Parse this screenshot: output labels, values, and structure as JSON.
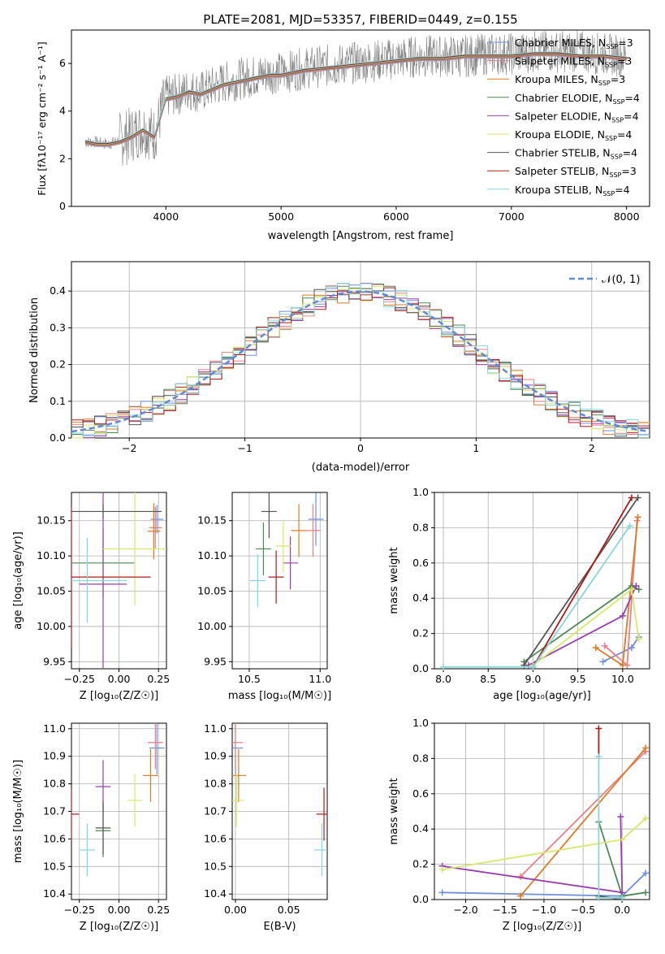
{
  "page": {
    "title": "PLATE=2081, MJD=53357, FIBERID=0449, z=0.155"
  },
  "colors": {
    "chabrier_miles": "#6f8fdc",
    "salpeter_miles": "#ea7f87",
    "kroupa_miles": "#e07a25",
    "chabrier_elodie": "#4f8a56",
    "salpeter_elodie": "#9a3fb0",
    "kroupa_elodie": "#d8e86b",
    "chabrier_stelib": "#555555",
    "salpeter_stelib": "#b01a1a",
    "kroupa_stelib": "#86d8d8",
    "data": "#808080",
    "gauss": "#5f8ad6"
  },
  "spectrum": {
    "xlabel": "wavelength [Angstrom, rest frame]",
    "ylabel": "Flux [f$_\\lambda$10$^{-17}$ erg cm$^{-2}$ s$^{-1}$ A$^{-1}$]",
    "ylabel_display": "Flux [fλ10⁻¹⁷ erg cm⁻² s⁻¹ A⁻¹]",
    "xticks": [
      "4000",
      "5000",
      "6000",
      "7000",
      "8000"
    ],
    "yticks": [
      "0",
      "2",
      "4",
      "6"
    ],
    "legend": [
      {
        "label": "Chabrier MILES, N",
        "sub": "SSP",
        "tail": "=3",
        "color": "chabrier_miles"
      },
      {
        "label": "Salpeter MILES, N",
        "sub": "SSP",
        "tail": "=3",
        "color": "salpeter_miles"
      },
      {
        "label": "Kroupa MILES, N",
        "sub": "SSP",
        "tail": "=3",
        "color": "kroupa_miles"
      },
      {
        "label": "Chabrier ELODIE, N",
        "sub": "SSP",
        "tail": "=4",
        "color": "chabrier_elodie"
      },
      {
        "label": "Salpeter ELODIE, N",
        "sub": "SSP",
        "tail": "=4",
        "color": "salpeter_elodie"
      },
      {
        "label": "Kroupa ELODIE, N",
        "sub": "SSP",
        "tail": "=4",
        "color": "kroupa_elodie"
      },
      {
        "label": "Chabrier STELIB, N",
        "sub": "SSP",
        "tail": "=4",
        "color": "chabrier_stelib"
      },
      {
        "label": "Salpeter STELIB, N",
        "sub": "SSP",
        "tail": "=3",
        "color": "salpeter_stelib"
      },
      {
        "label": "Kroupa STELIB, N",
        "sub": "SSP",
        "tail": "=4",
        "color": "kroupa_stelib"
      }
    ]
  },
  "residuals": {
    "xlabel": "(data-model)/error",
    "ylabel": "Normed distribution",
    "xticks": [
      "−2",
      "−1",
      "0",
      "1",
      "2"
    ],
    "yticks": [
      "0.0",
      "0.1",
      "0.2",
      "0.3",
      "0.4"
    ],
    "legend": "𝒩(0, 1)"
  },
  "panels": {
    "age_z": {
      "xlabel": "Z [log₁₀(Z/Z☉)]",
      "ylabel": "age  [log₁₀(age/yr)]",
      "xticks": [
        "−0.25",
        "0.00",
        "0.25"
      ],
      "yticks": [
        "9.95",
        "10.00",
        "10.05",
        "10.10",
        "10.15"
      ]
    },
    "age_mass": {
      "xlabel": "mass [log₁₀(M/M☉)]",
      "xticks": [
        "10.5",
        "11.0"
      ],
      "yticks": [
        "9.95",
        "10.00",
        "10.05",
        "10.10",
        "10.15"
      ]
    },
    "mw_age": {
      "xlabel": "age  [log₁₀(age/yr)]",
      "ylabel": "mass weight",
      "xticks": [
        "8.0",
        "8.5",
        "9.0",
        "9.5",
        "10.0"
      ],
      "yticks": [
        "0.0",
        "0.2",
        "0.4",
        "0.6",
        "0.8",
        "1.0"
      ]
    },
    "mass_z": {
      "xlabel": "Z [log₁₀(Z/Z☉)]",
      "ylabel": "mass [log₁₀(M/M☉)]",
      "xticks": [
        "−0.25",
        "0.00",
        "0.25"
      ],
      "yticks": [
        "10.4",
        "10.5",
        "10.6",
        "10.7",
        "10.8",
        "10.9",
        "11.0"
      ]
    },
    "mass_ebv": {
      "xlabel": "E(B-V)",
      "xticks": [
        "0.00",
        "0.05"
      ],
      "yticks": [
        "10.4",
        "10.5",
        "10.6",
        "10.7",
        "10.8",
        "10.9",
        "11.0"
      ]
    },
    "mw_z": {
      "xlabel": "Z [log₁₀(Z/Z☉)]",
      "ylabel": "mass weight",
      "xticks": [
        "−2.0",
        "−1.5",
        "−1.0",
        "−0.5",
        "0.0"
      ],
      "yticks": [
        "0.0",
        "0.2",
        "0.4",
        "0.6",
        "0.8",
        "1.0"
      ]
    }
  },
  "chart_data": [
    {
      "type": "line",
      "title": "PLATE=2081, MJD=53357, FIBERID=0449, z=0.155",
      "xlabel": "wavelength [Angstrom, rest frame]",
      "ylabel": "Flux [fλ10⁻¹⁷ erg cm⁻² s⁻¹ A⁻¹]",
      "xlim": [
        3180,
        8200
      ],
      "ylim": [
        0,
        7.4
      ],
      "series": [
        {
          "name": "data",
          "x": [
            3300,
            3400,
            3500,
            3600,
            3700,
            3800,
            3900,
            4000,
            4100,
            4200,
            4300,
            4400,
            4500,
            4600,
            4700,
            4800,
            4900,
            5000,
            5200,
            5400,
            5600,
            5800,
            6000,
            6200,
            6400,
            6600,
            6800,
            7000,
            7200,
            7400,
            7600,
            7800,
            8000
          ],
          "y": [
            2.7,
            2.7,
            2.6,
            2.8,
            3.0,
            3.3,
            3.0,
            4.6,
            4.7,
            4.9,
            4.8,
            5.0,
            5.2,
            5.3,
            5.4,
            5.5,
            5.6,
            5.6,
            5.8,
            5.9,
            6.0,
            6.1,
            6.2,
            6.3,
            6.3,
            6.3,
            6.4,
            6.4,
            6.5,
            6.5,
            6.5,
            6.4,
            6.3
          ]
        },
        {
          "name": "Kroupa STELIB, N_SSP=4",
          "x": [
            3300,
            3400,
            3500,
            3600,
            3700,
            3800,
            3900,
            4000,
            4100,
            4200,
            4300,
            4400,
            4500,
            4600,
            4700,
            4800,
            4900,
            5000,
            5200,
            5400,
            5600,
            5800,
            6000,
            6200,
            6400,
            6600,
            6800,
            7000,
            7200,
            7400,
            7600,
            7800,
            8000
          ],
          "y": [
            2.7,
            2.6,
            2.6,
            2.7,
            2.9,
            3.2,
            2.9,
            4.5,
            4.6,
            4.8,
            4.7,
            4.9,
            5.1,
            5.2,
            5.3,
            5.4,
            5.5,
            5.5,
            5.7,
            5.8,
            5.9,
            6.0,
            6.1,
            6.2,
            6.2,
            6.3,
            6.3,
            6.3,
            6.4,
            6.4,
            6.3,
            6.3,
            6.2
          ]
        }
      ]
    },
    {
      "type": "line",
      "xlabel": "(data-model)/error",
      "ylabel": "Normed distribution",
      "xlim": [
        -2.5,
        2.5
      ],
      "ylim": [
        0,
        0.48
      ],
      "series": [
        {
          "name": "𝒩(0, 1)",
          "x": [
            -2.5,
            -2.0,
            -1.5,
            -1.0,
            -0.5,
            0.0,
            0.5,
            1.0,
            1.5,
            2.0,
            2.5
          ],
          "y": [
            0.018,
            0.054,
            0.13,
            0.242,
            0.352,
            0.399,
            0.352,
            0.242,
            0.13,
            0.054,
            0.018
          ]
        },
        {
          "name": "histogram",
          "x": [
            -2.4,
            -2.2,
            -2.0,
            -1.8,
            -1.6,
            -1.4,
            -1.2,
            -1.0,
            -0.8,
            -0.6,
            -0.4,
            -0.2,
            0.0,
            0.2,
            0.4,
            0.6,
            0.8,
            1.0,
            1.2,
            1.4,
            1.6,
            1.8,
            2.0,
            2.2,
            2.4
          ],
          "y": [
            0.02,
            0.03,
            0.05,
            0.08,
            0.11,
            0.15,
            0.2,
            0.24,
            0.3,
            0.34,
            0.38,
            0.39,
            0.41,
            0.41,
            0.38,
            0.35,
            0.3,
            0.24,
            0.19,
            0.14,
            0.11,
            0.07,
            0.05,
            0.03,
            0.02
          ]
        }
      ]
    },
    {
      "type": "scatter",
      "xlabel": "Z [log₁₀(Z/Z☉)]",
      "ylabel": "age  [log₁₀(age/yr)]",
      "xlim": [
        -0.3,
        0.3
      ],
      "ylim": [
        9.94,
        10.19
      ],
      "series": [
        {
          "name": "Chabrier MILES",
          "x": [
            0.24
          ],
          "y": [
            10.152
          ],
          "xerr": [
            0.04
          ],
          "yerr": [
            0.02
          ]
        },
        {
          "name": "Salpeter MILES",
          "x": [
            0.23
          ],
          "y": [
            10.14
          ],
          "xerr": [
            0.04
          ],
          "yerr": [
            0.03
          ]
        },
        {
          "name": "Kroupa MILES",
          "x": [
            0.22
          ],
          "y": [
            10.135
          ],
          "xerr": [
            0.04
          ],
          "yerr": [
            0.04
          ]
        },
        {
          "name": "Chabrier ELODIE",
          "x": [
            -0.1
          ],
          "y": [
            10.09
          ],
          "xerr": [
            0.2
          ],
          "yerr": [
            0.05
          ]
        },
        {
          "name": "Salpeter ELODIE",
          "x": [
            -0.1
          ],
          "y": [
            10.06
          ],
          "xerr": [
            0.15
          ],
          "yerr": [
            0.13
          ]
        },
        {
          "name": "Kroupa ELODIE",
          "x": [
            0.1
          ],
          "y": [
            10.11
          ],
          "xerr": [
            0.2
          ],
          "yerr": [
            0.08
          ]
        },
        {
          "name": "Chabrier STELIB",
          "x": [
            -0.1
          ],
          "y": [
            10.163
          ],
          "xerr": [
            0.37
          ],
          "yerr": [
            0.01
          ]
        },
        {
          "name": "Salpeter STELIB",
          "x": [
            -0.3
          ],
          "y": [
            10.07
          ],
          "xerr": [
            0.5
          ],
          "yerr": [
            0.1
          ]
        },
        {
          "name": "Kroupa STELIB",
          "x": [
            -0.2
          ],
          "y": [
            10.065
          ],
          "xerr": [
            0.25
          ],
          "yerr": [
            0.06
          ]
        }
      ]
    },
    {
      "type": "scatter",
      "xlabel": "mass [log₁₀(M/M☉)]",
      "xlim": [
        10.38,
        11.05
      ],
      "ylim": [
        9.94,
        10.19
      ],
      "series": [
        {
          "name": "Chabrier MILES",
          "x": [
            10.97
          ],
          "y": [
            10.152
          ]
        },
        {
          "name": "Salpeter MILES",
          "x": [
            10.95
          ],
          "y": [
            10.136
          ]
        },
        {
          "name": "Kroupa MILES",
          "x": [
            10.85
          ],
          "y": [
            10.136
          ]
        },
        {
          "name": "Chabrier ELODIE",
          "x": [
            10.6
          ],
          "y": [
            10.11
          ]
        },
        {
          "name": "Salpeter ELODIE",
          "x": [
            10.79
          ],
          "y": [
            10.09
          ]
        },
        {
          "name": "Kroupa ELODIE",
          "x": [
            10.74
          ],
          "y": [
            10.114
          ]
        },
        {
          "name": "Chabrier STELIB",
          "x": [
            10.64
          ],
          "y": [
            10.163
          ]
        },
        {
          "name": "Salpeter STELIB",
          "x": [
            10.69
          ],
          "y": [
            10.07
          ]
        },
        {
          "name": "Kroupa STELIB",
          "x": [
            10.56
          ],
          "y": [
            10.065
          ]
        }
      ]
    },
    {
      "type": "line",
      "xlabel": "age  [log₁₀(age/yr)]",
      "ylabel": "mass weight",
      "xlim": [
        7.9,
        10.3
      ],
      "ylim": [
        0,
        1.0
      ],
      "series": [
        {
          "name": "Chabrier MILES",
          "x": [
            9.78,
            10.1,
            10.18
          ],
          "y": [
            0.04,
            0.12,
            0.18
          ]
        },
        {
          "name": "Salpeter MILES",
          "x": [
            9.8,
            10.05,
            10.16
          ],
          "y": [
            0.13,
            0.02,
            0.84
          ]
        },
        {
          "name": "Kroupa MILES",
          "x": [
            9.7,
            10.0,
            10.17
          ],
          "y": [
            0.12,
            0.02,
            0.86
          ]
        },
        {
          "name": "Chabrier ELODIE",
          "x": [
            8.9,
            10.1,
            10.18
          ],
          "y": [
            0.04,
            0.47,
            0.45
          ]
        },
        {
          "name": "Salpeter ELODIE",
          "x": [
            8.95,
            10.0,
            10.15
          ],
          "y": [
            0.02,
            0.3,
            0.47
          ]
        },
        {
          "name": "Kroupa ELODIE",
          "x": [
            9.0,
            10.1,
            10.18
          ],
          "y": [
            0.02,
            0.45,
            0.17
          ]
        },
        {
          "name": "Chabrier STELIB",
          "x": [
            8.9,
            10.17
          ],
          "y": [
            0.02,
            0.97
          ]
        },
        {
          "name": "Salpeter STELIB",
          "x": [
            9.0,
            10.1
          ],
          "y": [
            0.01,
            0.97
          ]
        },
        {
          "name": "Kroupa STELIB",
          "x": [
            8.0,
            9.0,
            10.08
          ],
          "y": [
            0.01,
            0.01,
            0.81
          ]
        }
      ]
    },
    {
      "type": "scatter",
      "xlabel": "Z [log₁₀(Z/Z☉)]",
      "ylabel": "mass [log₁₀(M/M☉)]",
      "xlim": [
        -0.3,
        0.3
      ],
      "ylim": [
        10.38,
        11.02
      ],
      "series": [
        {
          "name": "Chabrier MILES",
          "x": [
            0.24
          ],
          "y": [
            10.93
          ]
        },
        {
          "name": "Salpeter MILES",
          "x": [
            0.23
          ],
          "y": [
            10.95
          ]
        },
        {
          "name": "Kroupa MILES",
          "x": [
            0.2
          ],
          "y": [
            10.83
          ]
        },
        {
          "name": "Chabrier ELODIE",
          "x": [
            -0.1
          ],
          "y": [
            10.63
          ]
        },
        {
          "name": "Salpeter ELODIE",
          "x": [
            -0.1
          ],
          "y": [
            10.79
          ]
        },
        {
          "name": "Kroupa ELODIE",
          "x": [
            0.1
          ],
          "y": [
            10.74
          ]
        },
        {
          "name": "Chabrier STELIB",
          "x": [
            -0.1
          ],
          "y": [
            10.64
          ]
        },
        {
          "name": "Salpeter STELIB",
          "x": [
            -0.3
          ],
          "y": [
            10.69
          ]
        },
        {
          "name": "Kroupa STELIB",
          "x": [
            -0.2
          ],
          "y": [
            10.56
          ]
        }
      ]
    },
    {
      "type": "scatter",
      "xlabel": "E(B-V)",
      "xlim": [
        -0.003,
        0.086
      ],
      "ylim": [
        10.38,
        11.02
      ],
      "series": [
        {
          "name": "Chabrier MILES",
          "x": [
            0.0
          ],
          "y": [
            10.93
          ]
        },
        {
          "name": "Salpeter MILES",
          "x": [
            0.0
          ],
          "y": [
            10.95
          ]
        },
        {
          "name": "Kroupa MILES",
          "x": [
            0.003
          ],
          "y": [
            10.83
          ]
        },
        {
          "name": "Kroupa ELODIE",
          "x": [
            0.001
          ],
          "y": [
            10.74
          ]
        },
        {
          "name": "Salpeter STELIB",
          "x": [
            0.083
          ],
          "y": [
            10.69
          ]
        },
        {
          "name": "Kroupa STELIB",
          "x": [
            0.081
          ],
          "y": [
            10.56
          ]
        }
      ]
    },
    {
      "type": "line",
      "xlabel": "Z [log₁₀(Z/Z☉)]",
      "ylabel": "mass weight",
      "xlim": [
        -2.4,
        0.35
      ],
      "ylim": [
        0,
        1.0
      ],
      "series": [
        {
          "name": "Chabrier MILES",
          "x": [
            -2.3,
            0.0,
            0.3
          ],
          "y": [
            0.04,
            0.02,
            0.15
          ]
        },
        {
          "name": "Salpeter MILES",
          "x": [
            -1.3,
            0.3
          ],
          "y": [
            0.13,
            0.84
          ]
        },
        {
          "name": "Kroupa MILES",
          "x": [
            -1.3,
            0.3
          ],
          "y": [
            0.02,
            0.86
          ]
        },
        {
          "name": "Chabrier ELODIE",
          "x": [
            -0.3,
            0.0,
            0.3
          ],
          "y": [
            0.44,
            0.02,
            0.04
          ]
        },
        {
          "name": "Salpeter ELODIE",
          "x": [
            -2.3,
            0.0,
            -0.02
          ],
          "y": [
            0.19,
            0.04,
            0.47
          ]
        },
        {
          "name": "Kroupa ELODIE",
          "x": [
            -2.3,
            0.0,
            0.3
          ],
          "y": [
            0.17,
            0.34,
            0.46
          ]
        },
        {
          "name": "Chabrier STELIB",
          "x": [
            -0.3,
            0.0
          ],
          "y": [
            0.02,
            0.0
          ]
        },
        {
          "name": "Salpeter STELIB",
          "x": [
            -0.3,
            -0.3
          ],
          "y": [
            0.97,
            0.81
          ]
        },
        {
          "name": "Kroupa STELIB",
          "x": [
            -0.3,
            -0.3,
            0.0
          ],
          "y": [
            0.81,
            0.01,
            0.01
          ]
        }
      ]
    }
  ]
}
